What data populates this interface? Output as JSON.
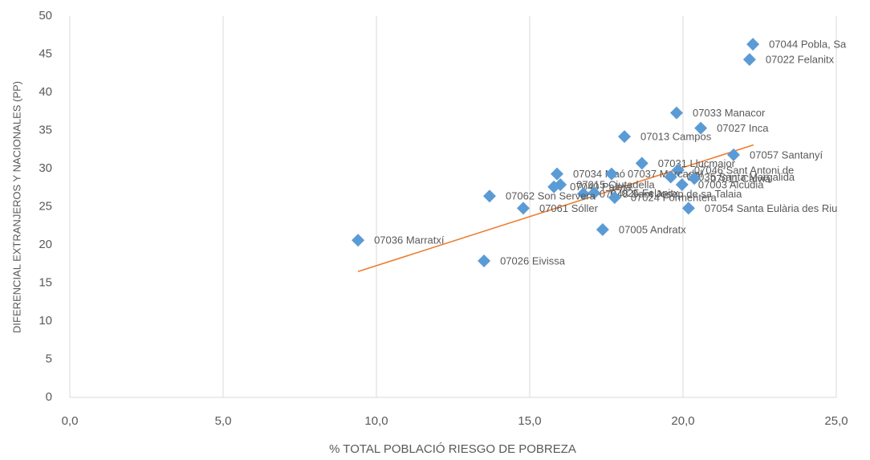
{
  "chart_data": {
    "type": "scatter",
    "xlabel": "% TOTAL POBLACIÓ RIESGO DE POBREZA",
    "ylabel": "DIFERENCIAL EXTRANJEROS Y NACIONALES (PP)",
    "color": "#5b9bd5",
    "grid": "x",
    "xlim": [
      0,
      25
    ],
    "ylim": [
      0,
      50
    ],
    "xticks": [
      {
        "value": 0,
        "label": "0,0"
      },
      {
        "value": 5,
        "label": "5,0"
      },
      {
        "value": 10,
        "label": "10,0"
      },
      {
        "value": 15,
        "label": "15,0"
      },
      {
        "value": 20,
        "label": "20,0"
      },
      {
        "value": 25,
        "label": "25,0"
      }
    ],
    "yticks": [
      0,
      5,
      10,
      15,
      20,
      25,
      30,
      35,
      40,
      45,
      50
    ],
    "labels": [
      "07044 Pobla, Sa",
      "07022 Felanitx",
      "07033 Manacor",
      "07027 Inca",
      "07013 Campos",
      "07057 Santanyí",
      "07031 Llucmajor",
      "07046 Sant Antoni de",
      "07034 Maó",
      "07037 Mercadal",
      "07035 Santa Margalida",
      "07011 Calvià",
      "07003 Alcúdia",
      "07015 Ciutadella",
      "07040 Palma",
      "07048 Sant Josep de sa Talaia",
      "07025 Felanitx",
      "07024 Formentera",
      "07062 Son Servera",
      "07061 Sóller",
      "07054 Santa Eulària des Riu",
      "07005 Andratx",
      "07036 Marratxí",
      "07026 Eivissa"
    ],
    "x": [
      22.28,
      22.17,
      19.79,
      20.58,
      18.09,
      21.65,
      18.66,
      19.84,
      15.89,
      17.67,
      19.6,
      20.37,
      19.97,
      16.0,
      15.79,
      16.75,
      17.1,
      17.77,
      13.69,
      14.79,
      20.18,
      17.38,
      9.4,
      13.51
    ],
    "values": [
      46.3,
      44.3,
      37.3,
      35.3,
      34.2,
      31.8,
      30.7,
      29.8,
      29.3,
      29.3,
      28.9,
      28.7,
      27.9,
      27.9,
      27.6,
      26.7,
      26.8,
      26.2,
      26.4,
      24.8,
      24.8,
      22.0,
      20.6,
      17.9
    ],
    "trendline": {
      "color": "#ed7d31",
      "x": [
        9.4,
        22.3
      ],
      "y": [
        16.5,
        33.1
      ]
    }
  }
}
